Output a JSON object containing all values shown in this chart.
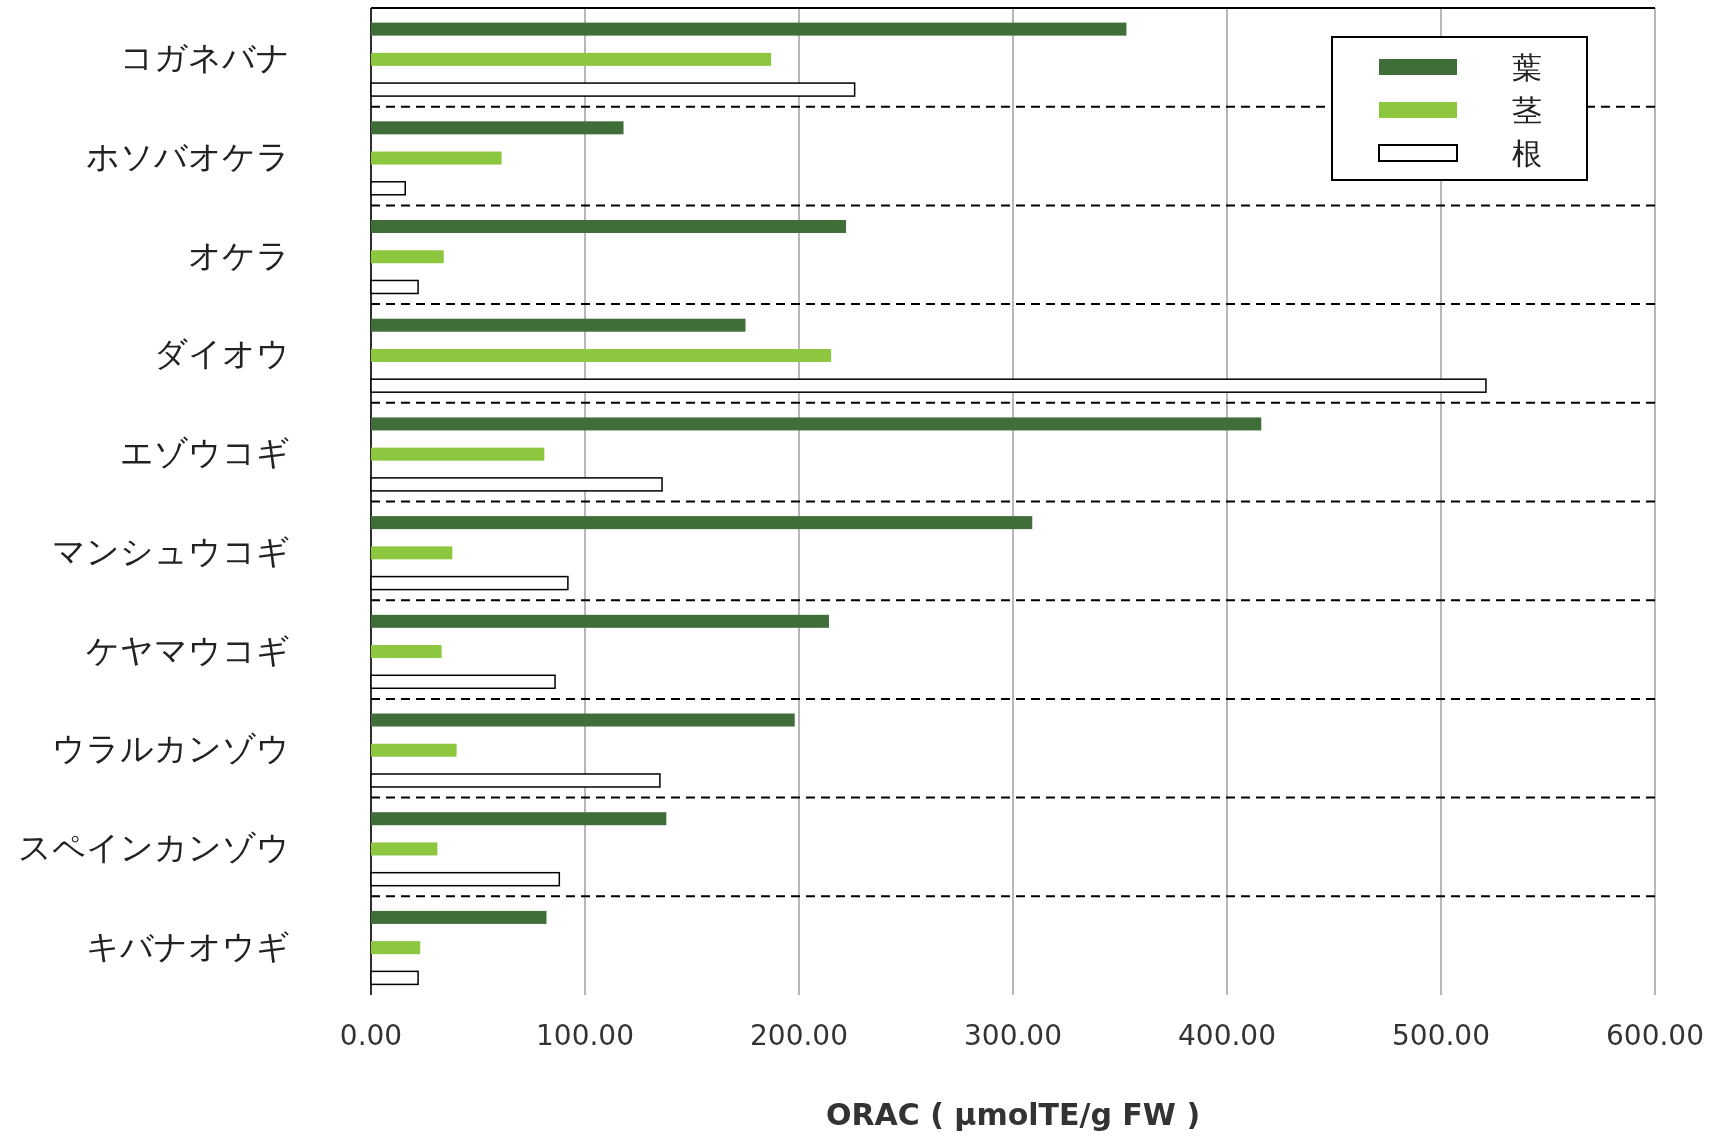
{
  "chart_data": {
    "type": "bar",
    "orientation": "horizontal",
    "xlabel": "ORAC ( µmolTE/g FW )",
    "categories": [
      "コガネバナ",
      "ホソバオケラ",
      "オケラ",
      "ダイオウ",
      "エゾウコギ",
      "マンシュウコギ",
      "ケヤマウコギ",
      "ウラルカンゾウ",
      "スペインカンゾウ",
      "キバナオウギ"
    ],
    "series": [
      {
        "name": "葉",
        "color": "#3f6e38",
        "values": [
          353,
          118,
          222,
          175,
          416,
          309,
          214,
          198,
          138,
          82
        ]
      },
      {
        "name": "茎",
        "color": "#8dc63f",
        "values": [
          187,
          61,
          34,
          215,
          81,
          38,
          33,
          40,
          31,
          23
        ]
      },
      {
        "name": "根",
        "color": "#ffffff",
        "values": [
          226,
          16,
          22,
          521,
          136,
          92,
          86,
          135,
          88,
          22
        ]
      }
    ],
    "xlim": [
      0,
      600
    ],
    "xticks": [
      {
        "value": 0,
        "label": "0.00"
      },
      {
        "value": 100,
        "label": "100.00"
      },
      {
        "value": 200,
        "label": "200.00"
      },
      {
        "value": 300,
        "label": "300.00"
      },
      {
        "value": 400,
        "label": "400.00"
      },
      {
        "value": 500,
        "label": "500.00"
      },
      {
        "value": 600,
        "label": "600.00"
      }
    ],
    "grid": "x",
    "legend": "top right"
  }
}
